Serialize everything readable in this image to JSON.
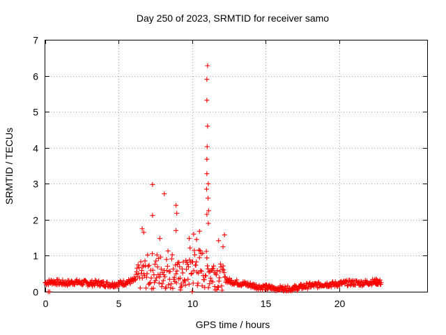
{
  "chart_data": {
    "type": "scatter",
    "title": "Day 250 of 2023, SRMTID for receiver samo",
    "xlabel": "GPS time / hours",
    "ylabel": "SRMTID / TECUs",
    "xlim": [
      0,
      26
    ],
    "ylim": [
      0,
      7
    ],
    "xticks": [
      0,
      5,
      10,
      15,
      20
    ],
    "yticks": [
      0,
      1,
      2,
      3,
      4,
      5,
      6,
      7
    ],
    "grid": true,
    "marker": "+",
    "color": "#ff0000",
    "series": [
      {
        "name": "SRMTID",
        "points": [
          [
            11.05,
            6.28
          ],
          [
            11.0,
            5.9
          ],
          [
            11.0,
            5.32
          ],
          [
            11.05,
            4.6
          ],
          [
            11.02,
            4.03
          ],
          [
            11.0,
            3.68
          ],
          [
            11.0,
            3.28
          ],
          [
            11.1,
            3.0
          ],
          [
            10.98,
            2.85
          ],
          [
            11.08,
            2.6
          ],
          [
            11.12,
            2.25
          ],
          [
            11.0,
            2.15
          ],
          [
            11.1,
            1.9
          ],
          [
            7.3,
            2.98
          ],
          [
            8.1,
            2.72
          ],
          [
            7.3,
            2.12
          ],
          [
            8.9,
            2.4
          ],
          [
            8.95,
            2.18
          ],
          [
            8.9,
            1.7
          ],
          [
            6.6,
            1.75
          ],
          [
            6.7,
            1.65
          ],
          [
            10.5,
            1.68
          ],
          [
            12.2,
            1.58
          ],
          [
            9.8,
            1.48
          ],
          [
            10.1,
            1.6
          ],
          [
            10.3,
            1.45
          ],
          [
            11.8,
            1.42
          ],
          [
            12.1,
            1.25
          ],
          [
            7.8,
            1.48
          ],
          [
            0.3,
            0.0
          ],
          [
            0.2,
            0.0
          ],
          [
            9.2,
            0.05
          ],
          [
            10.0,
            0.0
          ]
        ],
        "dense_trace": [
          [
            0.0,
            0.25
          ],
          [
            0.5,
            0.28
          ],
          [
            1.0,
            0.25
          ],
          [
            1.5,
            0.24
          ],
          [
            2.0,
            0.27
          ],
          [
            2.5,
            0.25
          ],
          [
            3.0,
            0.23
          ],
          [
            3.5,
            0.24
          ],
          [
            4.0,
            0.22
          ],
          [
            4.5,
            0.2
          ],
          [
            5.0,
            0.22
          ],
          [
            5.5,
            0.26
          ],
          [
            6.0,
            0.3
          ],
          [
            6.5,
            0.45
          ],
          [
            7.0,
            0.55
          ],
          [
            7.5,
            0.6
          ],
          [
            8.0,
            0.55
          ],
          [
            8.5,
            0.7
          ],
          [
            9.0,
            0.45
          ],
          [
            9.5,
            0.45
          ],
          [
            10.0,
            0.75
          ],
          [
            10.5,
            0.65
          ],
          [
            11.0,
            0.6
          ],
          [
            11.5,
            0.55
          ],
          [
            12.0,
            0.4
          ],
          [
            12.5,
            0.3
          ],
          [
            13.0,
            0.26
          ],
          [
            13.5,
            0.22
          ],
          [
            14.0,
            0.18
          ],
          [
            14.5,
            0.14
          ],
          [
            15.0,
            0.12
          ],
          [
            15.5,
            0.1
          ],
          [
            16.0,
            0.09
          ],
          [
            16.5,
            0.08
          ],
          [
            17.0,
            0.1
          ],
          [
            17.5,
            0.14
          ],
          [
            18.0,
            0.17
          ],
          [
            18.5,
            0.18
          ],
          [
            19.0,
            0.22
          ],
          [
            19.5,
            0.2
          ],
          [
            20.0,
            0.22
          ],
          [
            20.5,
            0.24
          ],
          [
            21.0,
            0.25
          ],
          [
            21.5,
            0.24
          ],
          [
            22.0,
            0.26
          ],
          [
            22.5,
            0.28
          ],
          [
            22.9,
            0.25
          ]
        ]
      }
    ]
  }
}
